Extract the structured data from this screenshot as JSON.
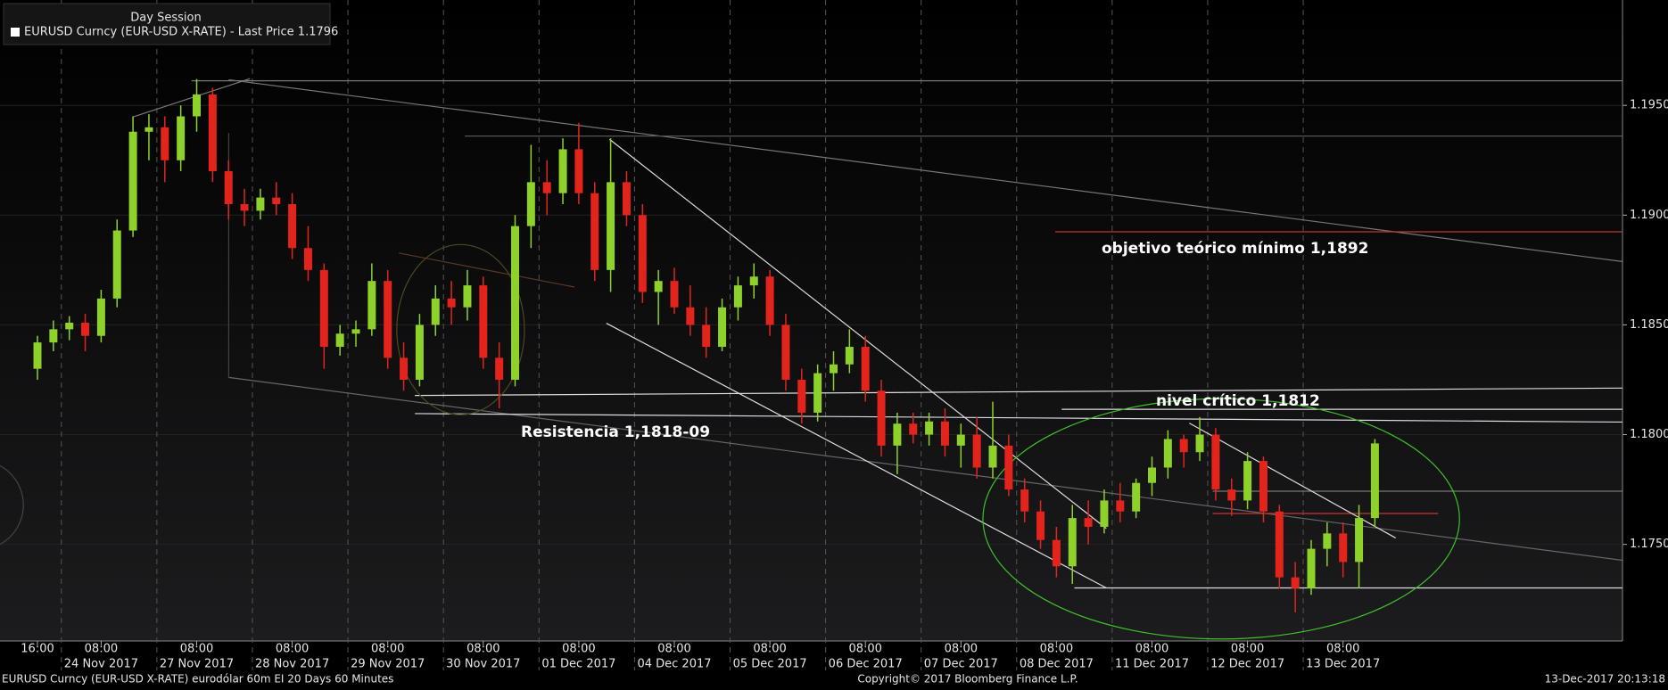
{
  "chart_data": {
    "type": "candlestick",
    "legend_title": "Day Session",
    "series_name": "EURUSD Curncy (EUR-USD X-RATE) - Last Price 1.1796",
    "up_color": "#8fd12b",
    "down_color": "#e3241d",
    "x": [
      "23 Nov 2017 16:00",
      "23 Nov 2017 20:00",
      "24 Nov 2017 00:00",
      "24 Nov 2017 04:00",
      "24 Nov 2017 08:00",
      "24 Nov 2017 12:00",
      "24 Nov 2017 16:00",
      "24 Nov 2017 20:00",
      "27 Nov 2017 00:00",
      "27 Nov 2017 04:00",
      "27 Nov 2017 08:00",
      "27 Nov 2017 12:00",
      "27 Nov 2017 16:00",
      "27 Nov 2017 20:00",
      "28 Nov 2017 00:00",
      "28 Nov 2017 04:00",
      "28 Nov 2017 08:00",
      "28 Nov 2017 12:00",
      "28 Nov 2017 16:00",
      "28 Nov 2017 20:00",
      "29 Nov 2017 00:00",
      "29 Nov 2017 04:00",
      "29 Nov 2017 08:00",
      "29 Nov 2017 12:00",
      "29 Nov 2017 16:00",
      "29 Nov 2017 20:00",
      "30 Nov 2017 00:00",
      "30 Nov 2017 04:00",
      "30 Nov 2017 08:00",
      "30 Nov 2017 12:00",
      "30 Nov 2017 16:00",
      "30 Nov 2017 20:00",
      "01 Dec 2017 00:00",
      "01 Dec 2017 04:00",
      "01 Dec 2017 08:00",
      "01 Dec 2017 12:00",
      "01 Dec 2017 16:00",
      "01 Dec 2017 20:00",
      "04 Dec 2017 00:00",
      "04 Dec 2017 04:00",
      "04 Dec 2017 08:00",
      "04 Dec 2017 12:00",
      "04 Dec 2017 16:00",
      "04 Dec 2017 20:00",
      "05 Dec 2017 00:00",
      "05 Dec 2017 04:00",
      "05 Dec 2017 08:00",
      "05 Dec 2017 12:00",
      "05 Dec 2017 16:00",
      "05 Dec 2017 20:00",
      "06 Dec 2017 00:00",
      "06 Dec 2017 04:00",
      "06 Dec 2017 08:00",
      "06 Dec 2017 12:00",
      "06 Dec 2017 16:00",
      "06 Dec 2017 20:00",
      "07 Dec 2017 00:00",
      "07 Dec 2017 04:00",
      "07 Dec 2017 08:00",
      "07 Dec 2017 12:00",
      "07 Dec 2017 16:00",
      "07 Dec 2017 20:00",
      "08 Dec 2017 00:00",
      "08 Dec 2017 04:00",
      "08 Dec 2017 08:00",
      "08 Dec 2017 12:00",
      "08 Dec 2017 16:00",
      "08 Dec 2017 20:00",
      "11 Dec 2017 00:00",
      "11 Dec 2017 04:00",
      "11 Dec 2017 08:00",
      "11 Dec 2017 12:00",
      "11 Dec 2017 16:00",
      "11 Dec 2017 20:00",
      "12 Dec 2017 00:00",
      "12 Dec 2017 04:00",
      "12 Dec 2017 08:00",
      "12 Dec 2017 12:00",
      "12 Dec 2017 16:00",
      "12 Dec 2017 20:00",
      "13 Dec 2017 00:00",
      "13 Dec 2017 04:00",
      "13 Dec 2017 08:00",
      "13 Dec 2017 12:00",
      "13 Dec 2017 16:00"
    ],
    "open": [
      1.183,
      1.1842,
      1.1848,
      1.1851,
      1.1845,
      1.1862,
      1.1893,
      1.1938,
      1.194,
      1.1925,
      1.1945,
      1.1955,
      1.192,
      1.1905,
      1.1902,
      1.1908,
      1.1905,
      1.1885,
      1.1875,
      1.184,
      1.1846,
      1.1848,
      1.187,
      1.1835,
      1.1825,
      1.185,
      1.1862,
      1.1858,
      1.1868,
      1.1835,
      1.1825,
      1.1895,
      1.1915,
      1.191,
      1.193,
      1.191,
      1.1875,
      1.1915,
      1.19,
      1.1865,
      1.187,
      1.1858,
      1.185,
      1.184,
      1.1858,
      1.1868,
      1.1872,
      1.185,
      1.1825,
      1.181,
      1.1828,
      1.1832,
      1.184,
      1.182,
      1.1795,
      1.1805,
      1.18,
      1.1806,
      1.1795,
      1.18,
      1.1785,
      1.1795,
      1.1775,
      1.1765,
      1.1752,
      1.174,
      1.1762,
      1.1758,
      1.177,
      1.1765,
      1.1778,
      1.1785,
      1.1798,
      1.1792,
      1.18,
      1.1775,
      1.177,
      1.1788,
      1.1765,
      1.1735,
      1.173,
      1.1748,
      1.1755,
      1.1742,
      1.1762
    ],
    "high": [
      1.1845,
      1.1852,
      1.1854,
      1.1855,
      1.1866,
      1.1898,
      1.1945,
      1.1946,
      1.1945,
      1.195,
      1.1962,
      1.1958,
      1.1925,
      1.1912,
      1.1912,
      1.1915,
      1.191,
      1.1895,
      1.1878,
      1.185,
      1.1852,
      1.1878,
      1.1875,
      1.1842,
      1.1855,
      1.1868,
      1.187,
      1.1875,
      1.1872,
      1.1842,
      1.19,
      1.1932,
      1.1925,
      1.1935,
      1.1942,
      1.1915,
      1.1935,
      1.192,
      1.1905,
      1.1875,
      1.1876,
      1.1868,
      1.1858,
      1.1862,
      1.1872,
      1.1878,
      1.1875,
      1.1855,
      1.183,
      1.1832,
      1.1838,
      1.1848,
      1.1845,
      1.1825,
      1.181,
      1.181,
      1.181,
      1.1812,
      1.1805,
      1.1808,
      1.1815,
      1.18,
      1.178,
      1.177,
      1.1758,
      1.1768,
      1.177,
      1.1775,
      1.1778,
      1.178,
      1.179,
      1.1802,
      1.18,
      1.1808,
      1.1803,
      1.178,
      1.1792,
      1.179,
      1.1768,
      1.1742,
      1.1752,
      1.176,
      1.176,
      1.1768,
      1.1798
    ],
    "low": [
      1.1825,
      1.1838,
      1.1843,
      1.1838,
      1.1842,
      1.1858,
      1.189,
      1.1925,
      1.1915,
      1.192,
      1.1938,
      1.1915,
      1.1898,
      1.1895,
      1.1898,
      1.19,
      1.188,
      1.187,
      1.183,
      1.1836,
      1.184,
      1.1845,
      1.183,
      1.182,
      1.1822,
      1.1845,
      1.185,
      1.1852,
      1.183,
      1.1812,
      1.1822,
      1.1885,
      1.19,
      1.1905,
      1.1905,
      1.187,
      1.1865,
      1.1895,
      1.186,
      1.185,
      1.1855,
      1.1845,
      1.1835,
      1.1838,
      1.1852,
      1.1862,
      1.1845,
      1.182,
      1.1805,
      1.1806,
      1.182,
      1.1828,
      1.1815,
      1.179,
      1.1782,
      1.1796,
      1.1795,
      1.179,
      1.1785,
      1.178,
      1.178,
      1.1772,
      1.176,
      1.1748,
      1.1735,
      1.1732,
      1.175,
      1.1755,
      1.176,
      1.1762,
      1.1772,
      1.178,
      1.1785,
      1.1788,
      1.177,
      1.1763,
      1.1766,
      1.176,
      1.173,
      1.1719,
      1.1727,
      1.174,
      1.1735,
      1.173,
      1.1758
    ],
    "close": [
      1.1842,
      1.1848,
      1.1851,
      1.1845,
      1.1862,
      1.1893,
      1.1938,
      1.194,
      1.1925,
      1.1945,
      1.1955,
      1.192,
      1.1905,
      1.1902,
      1.1908,
      1.1905,
      1.1885,
      1.1875,
      1.184,
      1.1846,
      1.1848,
      1.187,
      1.1835,
      1.1825,
      1.185,
      1.1862,
      1.1858,
      1.1868,
      1.1835,
      1.1825,
      1.1895,
      1.1915,
      1.191,
      1.193,
      1.191,
      1.1875,
      1.1915,
      1.19,
      1.1865,
      1.187,
      1.1858,
      1.185,
      1.184,
      1.1858,
      1.1868,
      1.1872,
      1.185,
      1.1825,
      1.181,
      1.1828,
      1.1832,
      1.184,
      1.182,
      1.1795,
      1.1805,
      1.18,
      1.1806,
      1.1795,
      1.18,
      1.1785,
      1.1795,
      1.1775,
      1.1765,
      1.1752,
      1.174,
      1.1762,
      1.1758,
      1.177,
      1.1765,
      1.1778,
      1.1785,
      1.1798,
      1.1792,
      1.18,
      1.1775,
      1.177,
      1.1788,
      1.1765,
      1.1735,
      1.173,
      1.1748,
      1.1755,
      1.1742,
      1.1762,
      1.1796
    ],
    "ylim": [
      1.1706,
      1.1998
    ],
    "yticks": [
      {
        "value": 1.175,
        "label": "1.1750"
      },
      {
        "value": 1.18,
        "label": "1.1800"
      },
      {
        "value": 1.185,
        "label": "1.1850"
      },
      {
        "value": 1.19,
        "label": "1.1900"
      },
      {
        "value": 1.195,
        "label": "1.1950"
      }
    ],
    "xticks": [
      {
        "value": "23 Nov 2017 16:00",
        "label": "16:00"
      },
      {
        "value": "24 Nov 2017 08:00",
        "label": "08:00",
        "date": "24 Nov 2017"
      },
      {
        "value": "27 Nov 2017 08:00",
        "label": "08:00",
        "date": "27 Nov 2017"
      },
      {
        "value": "28 Nov 2017 08:00",
        "label": "08:00",
        "date": "28 Nov 2017"
      },
      {
        "value": "29 Nov 2017 08:00",
        "label": "08:00",
        "date": "29 Nov 2017"
      },
      {
        "value": "30 Nov 2017 08:00",
        "label": "08:00",
        "date": "30 Nov 2017"
      },
      {
        "value": "01 Dec 2017 08:00",
        "label": "08:00",
        "date": "01 Dec 2017"
      },
      {
        "value": "04 Dec 2017 08:00",
        "label": "08:00",
        "date": "04 Dec 2017"
      },
      {
        "value": "05 Dec 2017 08:00",
        "label": "08:00",
        "date": "05 Dec 2017"
      },
      {
        "value": "06 Dec 2017 08:00",
        "label": "08:00",
        "date": "06 Dec 2017"
      },
      {
        "value": "07 Dec 2017 08:00",
        "label": "08:00",
        "date": "07 Dec 2017"
      },
      {
        "value": "08 Dec 2017 08:00",
        "label": "08:00",
        "date": "08 Dec 2017"
      },
      {
        "value": "11 Dec 2017 08:00",
        "label": "08:00",
        "date": "11 Dec 2017"
      },
      {
        "value": "12 Dec 2017 08:00",
        "label": "08:00",
        "date": "12 Dec 2017"
      },
      {
        "value": "13 Dec 2017 08:00",
        "label": "08:00",
        "date": "13 Dec 2017"
      }
    ],
    "annotations": [
      "objetivo teórico mínimo 1,1892",
      "nivel crítico 1,1812",
      "Resistencia 1,1818-09"
    ],
    "footer": {
      "left": "EURUSD Curncy (EUR-USD X-RATE) eurodólar 60m EI 20 Days 60 Minutes",
      "center": "Copyright© 2017 Bloomberg Finance L.P.",
      "right": "13-Dec-2017 20:13:18"
    }
  }
}
